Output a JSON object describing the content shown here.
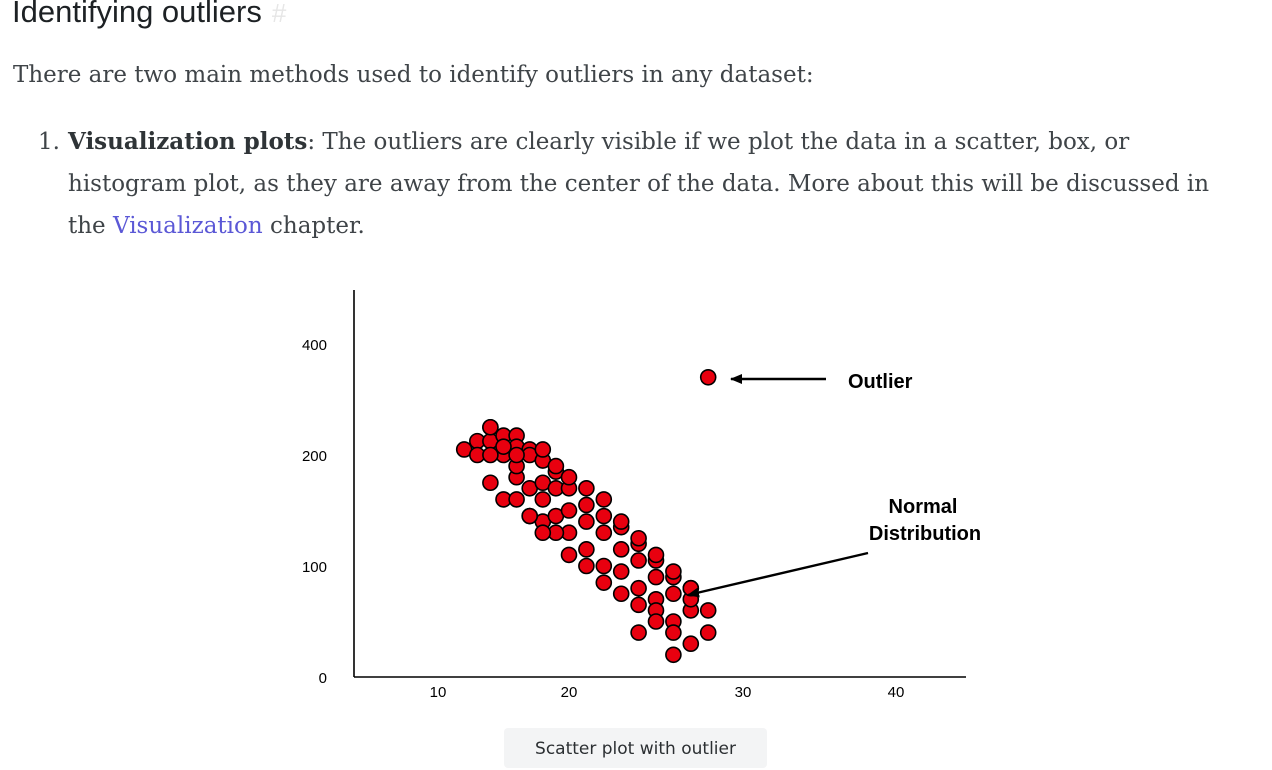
{
  "section": {
    "heading": "Identifying outliers",
    "anchor_symbol": "#",
    "intro": "There are two main methods used to identify outliers in any dataset:"
  },
  "list": {
    "item1": {
      "number": "1.",
      "bold": "Visualization plots",
      "text_after_bold": ": The outliers are clearly visible if we plot the data in a scatter, box, or histogram plot, as they are away from the center of the data. More about this will be discussed in the ",
      "link": "Visualization",
      "text_end": " chapter."
    }
  },
  "figure": {
    "caption": "Scatter plot with outlier"
  },
  "chart_data": {
    "type": "scatter",
    "title": "",
    "xlabel": "",
    "ylabel": "",
    "xlim": [
      5,
      45
    ],
    "ylim": [
      0,
      430
    ],
    "x_ticks": [
      "10",
      "20",
      "30",
      "40"
    ],
    "y_ticks": [
      "0",
      "100",
      "200",
      "400"
    ],
    "marker_color": "#e8000f",
    "annotations": [
      {
        "label": "Outlier",
        "points_to": "outlier"
      },
      {
        "label_line1": "Normal",
        "label_line2": "Distribution",
        "points_to": "cluster"
      }
    ],
    "outlier": {
      "x": 28,
      "y": 340
    },
    "points": [
      [
        12,
        210
      ],
      [
        13,
        225
      ],
      [
        13,
        200
      ],
      [
        14,
        250
      ],
      [
        14,
        225
      ],
      [
        14,
        175
      ],
      [
        14,
        250
      ],
      [
        15,
        235
      ],
      [
        15,
        210
      ],
      [
        15,
        200
      ],
      [
        16,
        235
      ],
      [
        16,
        215
      ],
      [
        16,
        180
      ],
      [
        17,
        210
      ],
      [
        17,
        200
      ],
      [
        17,
        170
      ],
      [
        18,
        195
      ],
      [
        18,
        175
      ],
      [
        18,
        140
      ],
      [
        19,
        185
      ],
      [
        19,
        170
      ],
      [
        19,
        145
      ],
      [
        20,
        170
      ],
      [
        20,
        150
      ],
      [
        20,
        130
      ],
      [
        21,
        155
      ],
      [
        21,
        140
      ],
      [
        21,
        115
      ],
      [
        22,
        145
      ],
      [
        22,
        130
      ],
      [
        22,
        100
      ],
      [
        23,
        135
      ],
      [
        23,
        115
      ],
      [
        23,
        95
      ],
      [
        24,
        120
      ],
      [
        24,
        105
      ],
      [
        24,
        80
      ],
      [
        25,
        105
      ],
      [
        25,
        90
      ],
      [
        25,
        70
      ],
      [
        26,
        90
      ],
      [
        26,
        75
      ],
      [
        26,
        50
      ],
      [
        27,
        80
      ],
      [
        27,
        60
      ],
      [
        27,
        30
      ],
      [
        15,
        160
      ],
      [
        16,
        160
      ],
      [
        17,
        145
      ],
      [
        18,
        160
      ],
      [
        19,
        130
      ],
      [
        20,
        110
      ],
      [
        21,
        100
      ],
      [
        22,
        85
      ],
      [
        23,
        75
      ],
      [
        24,
        65
      ],
      [
        25,
        60
      ],
      [
        26,
        40
      ],
      [
        27,
        70
      ],
      [
        28,
        60
      ],
      [
        28,
        40
      ],
      [
        18,
        130
      ],
      [
        17,
        145
      ],
      [
        23,
        140
      ],
      [
        24,
        125
      ],
      [
        25,
        110
      ],
      [
        26,
        95
      ],
      [
        27,
        80
      ],
      [
        22,
        160
      ],
      [
        21,
        170
      ],
      [
        20,
        180
      ],
      [
        19,
        190
      ],
      [
        18,
        210
      ],
      [
        16,
        190
      ],
      [
        15,
        215
      ],
      [
        14,
        200
      ],
      [
        16,
        200
      ],
      [
        25,
        50
      ],
      [
        26,
        20
      ],
      [
        24,
        40
      ]
    ]
  }
}
